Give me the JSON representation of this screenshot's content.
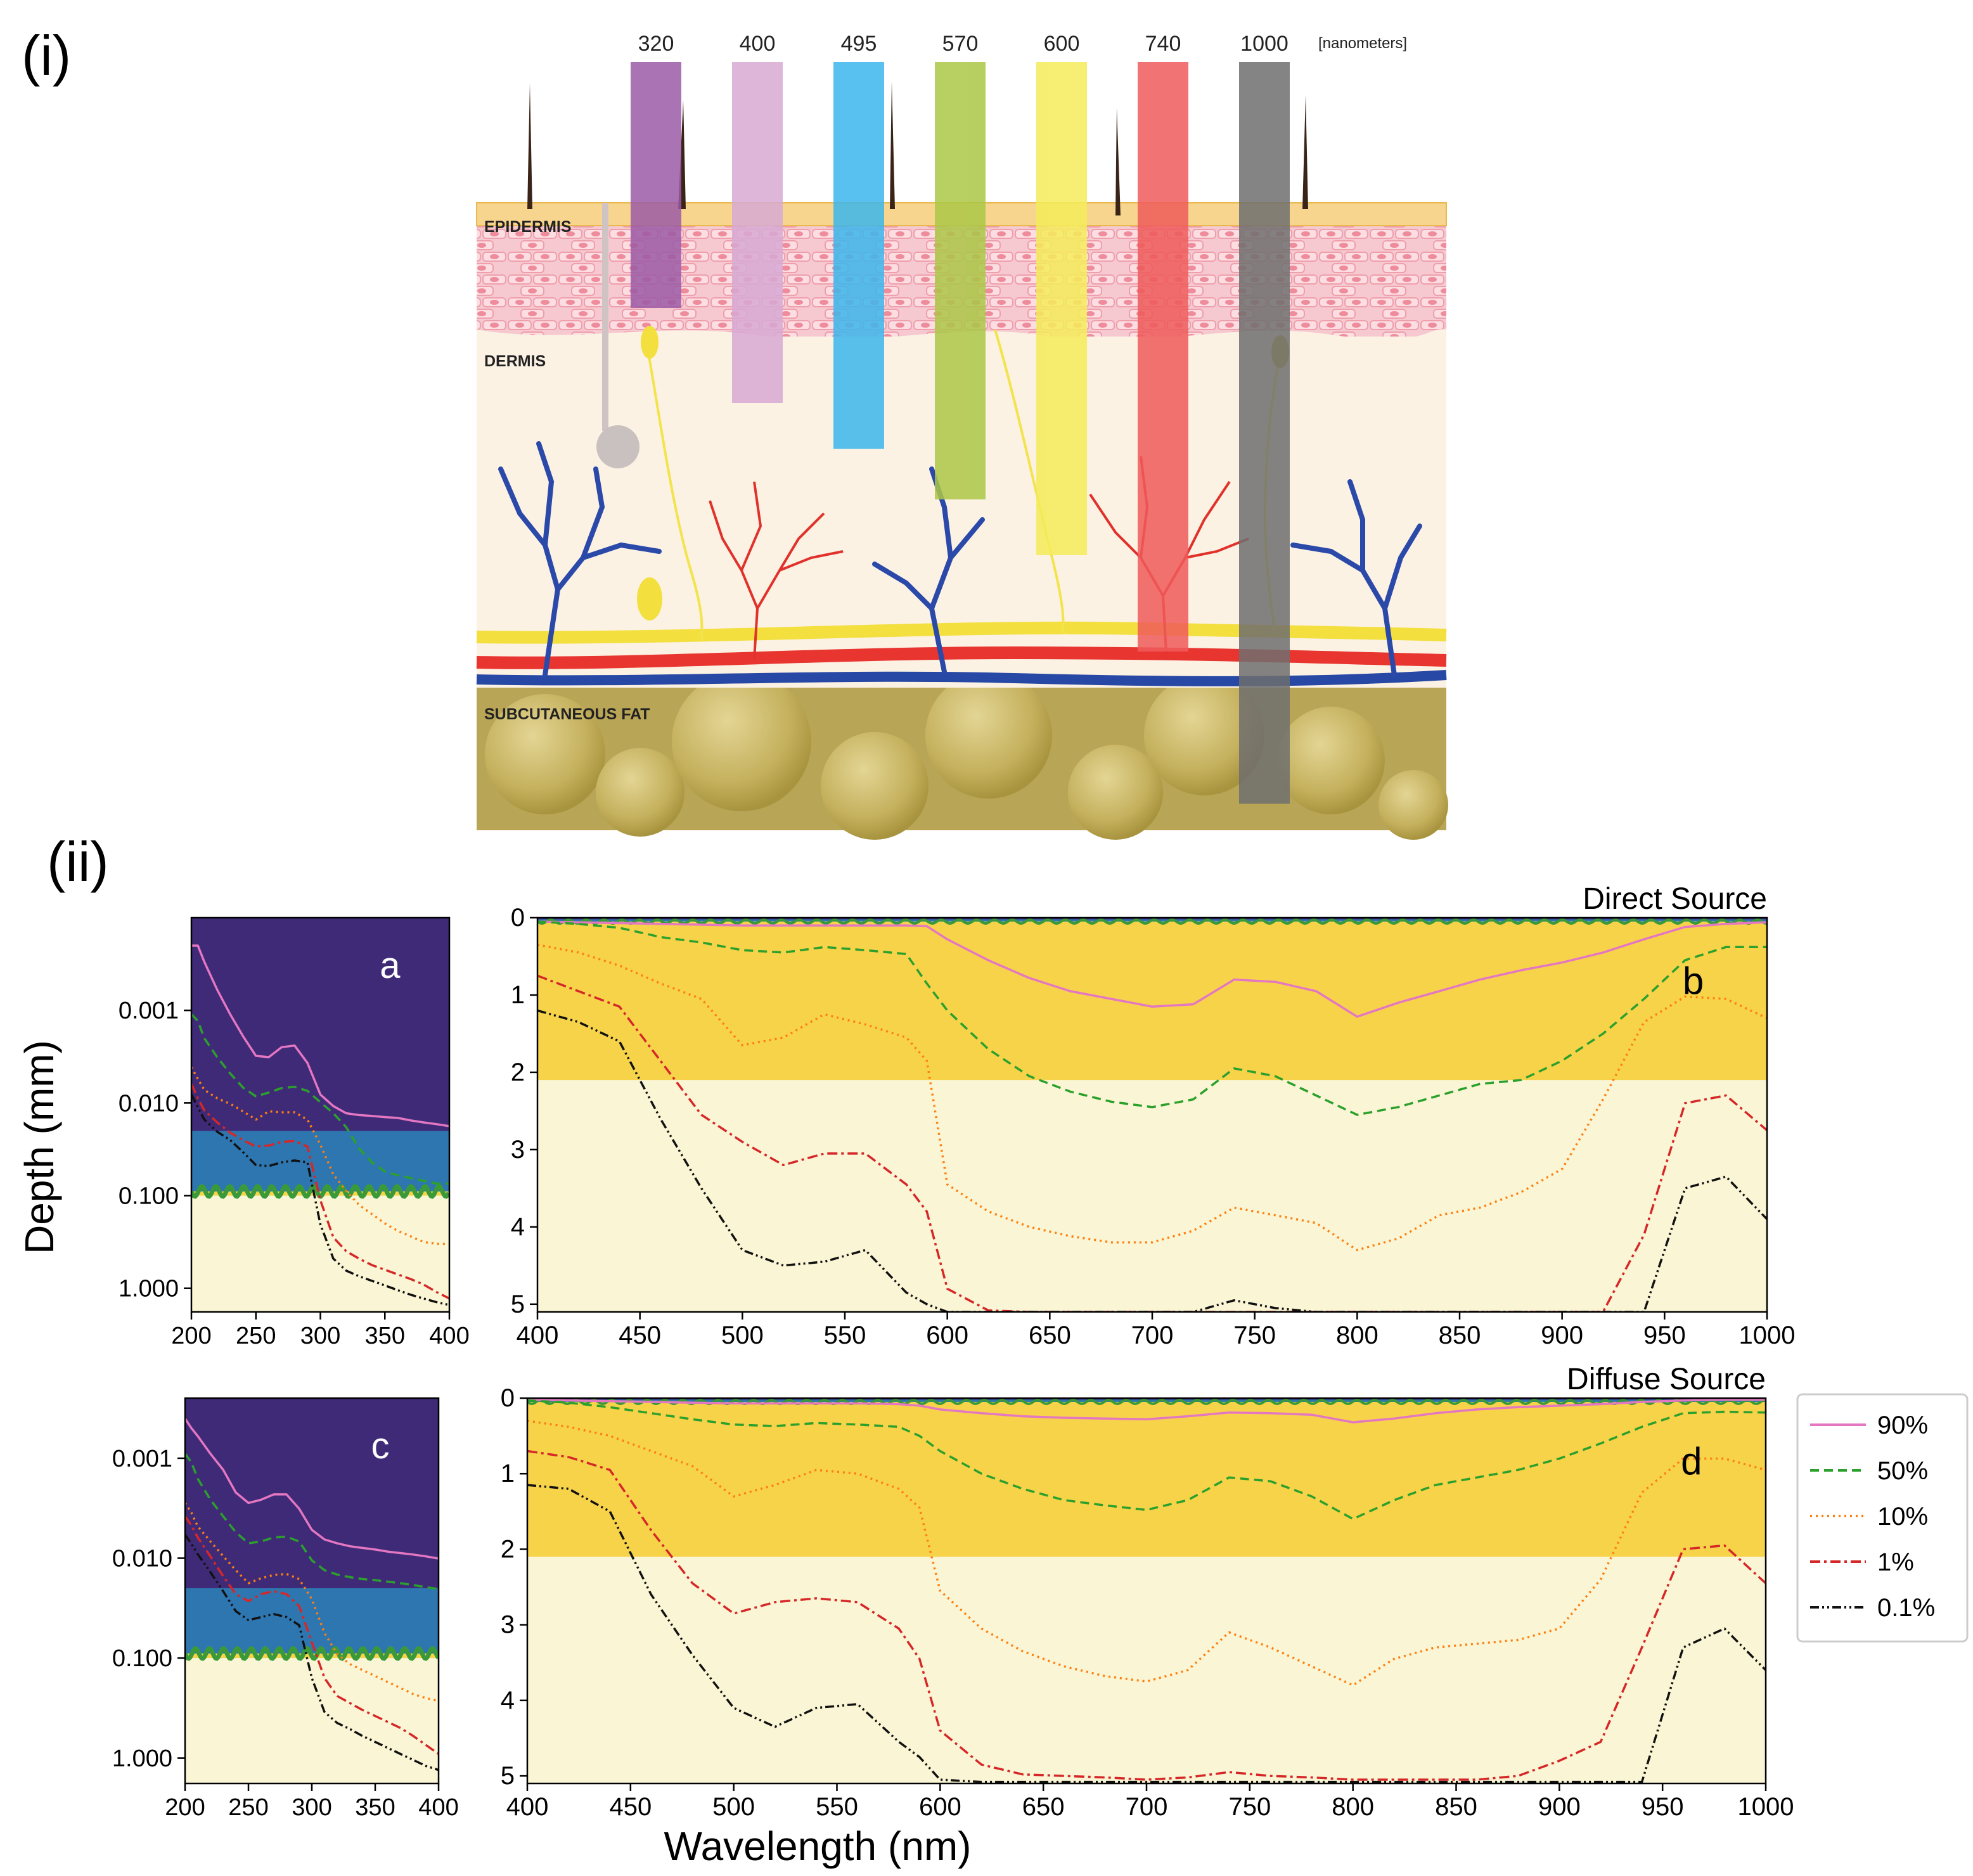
{
  "panel_labels": {
    "i": "(i)",
    "ii": "(ii)"
  },
  "skin": {
    "unit_label": "[nanometers]",
    "layers": [
      {
        "key": "epidermis",
        "label": "EPIDERMIS"
      },
      {
        "key": "dermis",
        "label": "DERMIS"
      },
      {
        "key": "fat",
        "label": "SUBCUTANEOUS FAT"
      }
    ],
    "beams": [
      {
        "label": "320",
        "color": "#9b5aa6",
        "penetration_layer": "epidermis"
      },
      {
        "label": "400",
        "color": "#d7a9d4",
        "penetration_layer": "dermis"
      },
      {
        "label": "495",
        "color": "#3bb6ec",
        "penetration_layer": "dermis"
      },
      {
        "label": "570",
        "color": "#abc746",
        "penetration_layer": "dermis"
      },
      {
        "label": "600",
        "color": "#f4ec5a",
        "penetration_layer": "dermis"
      },
      {
        "label": "740",
        "color": "#ee5a5a",
        "penetration_layer": "dermis"
      },
      {
        "label": "1000",
        "color": "#6f6f6f",
        "penetration_layer": "subcutaneous fat"
      }
    ]
  },
  "y_common_label": "Depth (mm)",
  "x_common_label": "Wavelength (nm)",
  "legend": [
    {
      "label": "90%",
      "color": "#e377c2",
      "dash": "solid"
    },
    {
      "label": "50%",
      "color": "#2ca02c",
      "dash": "dashed"
    },
    {
      "label": "10%",
      "color": "#ff7f0e",
      "dash": "dotted"
    },
    {
      "label": "1%",
      "color": "#d62728",
      "dash": "dashdot"
    },
    {
      "label": "0.1%",
      "color": "#111111",
      "dash": "dashdotdot"
    }
  ],
  "colors": {
    "stratum": "#3f2a78",
    "epidermis_top": "#2e76b0",
    "wave": "#3a9a3a",
    "epidermis": "#f7d34a",
    "dermis": "#faf5d4"
  },
  "chart_data": [
    {
      "panel": "a",
      "type": "line",
      "yscale": "log",
      "xlim": [
        200,
        400
      ],
      "ylim": [
        0.0001,
        1.8
      ],
      "xticks": [
        "200",
        "250",
        "300",
        "350",
        "400"
      ],
      "yticks": [
        {
          "v": 0.001,
          "t": "0.001"
        },
        {
          "v": 0.01,
          "t": "0.010"
        },
        {
          "v": 0.1,
          "t": "0.100"
        },
        {
          "v": 1,
          "t": "1.000"
        }
      ],
      "bands": [
        0.02,
        0.09,
        0.1
      ],
      "x": [
        200,
        205,
        210,
        220,
        230,
        240,
        250,
        260,
        270,
        280,
        290,
        300,
        310,
        320,
        330,
        340,
        350,
        360,
        370,
        380,
        390,
        400
      ],
      "series": [
        {
          "name": "90%",
          "values": [
            0.0002,
            0.0002,
            0.0003,
            0.0006,
            0.0011,
            0.0019,
            0.0031,
            0.0032,
            0.0025,
            0.0024,
            0.0037,
            0.0081,
            0.0108,
            0.0129,
            0.0135,
            0.0138,
            0.0142,
            0.0145,
            0.0154,
            0.0162,
            0.0169,
            0.0178
          ]
        },
        {
          "name": "50%",
          "values": [
            0.0011,
            0.0013,
            0.002,
            0.0032,
            0.0048,
            0.0068,
            0.0085,
            0.0077,
            0.0069,
            0.0067,
            0.0074,
            0.0098,
            0.0129,
            0.0182,
            0.0309,
            0.0437,
            0.055,
            0.0603,
            0.0646,
            0.0692,
            0.0741,
            0.0741
          ]
        },
        {
          "name": "10%",
          "values": [
            0.0041,
            0.0055,
            0.0072,
            0.0089,
            0.0102,
            0.0123,
            0.0151,
            0.0123,
            0.0126,
            0.0126,
            0.0151,
            0.0282,
            0.0589,
            0.0891,
            0.1259,
            0.1585,
            0.1995,
            0.2399,
            0.2754,
            0.3162,
            0.3311,
            0.3311
          ]
        },
        {
          "name": "1%",
          "values": [
            0.0062,
            0.0089,
            0.012,
            0.0162,
            0.0209,
            0.0251,
            0.0295,
            0.0288,
            0.0263,
            0.0257,
            0.0295,
            0.1122,
            0.2818,
            0.3981,
            0.4786,
            0.5623,
            0.631,
            0.7079,
            0.7943,
            0.912,
            1.0965,
            1.2882
          ]
        },
        {
          "name": "0.1%",
          "values": [
            0.0081,
            0.0112,
            0.0151,
            0.0204,
            0.0251,
            0.0339,
            0.0468,
            0.0479,
            0.0437,
            0.0417,
            0.0437,
            0.2042,
            0.4786,
            0.6457,
            0.7413,
            0.8318,
            0.9333,
            1.0471,
            1.1749,
            1.2882,
            1.4125,
            1.5136
          ]
        }
      ]
    },
    {
      "panel": "b",
      "type": "line",
      "title": "Direct Source",
      "xlim": [
        400,
        1000
      ],
      "ylim": [
        0,
        5.1
      ],
      "xticks": [
        "400",
        "450",
        "500",
        "550",
        "600",
        "650",
        "700",
        "750",
        "800",
        "850",
        "900",
        "950",
        "1000"
      ],
      "yticks": [
        "0",
        "1",
        "2",
        "3",
        "4",
        "5"
      ],
      "bands": [
        0.02,
        0.05,
        2.1
      ],
      "x": [
        400,
        420,
        440,
        460,
        480,
        500,
        520,
        540,
        560,
        580,
        590,
        600,
        620,
        640,
        660,
        680,
        700,
        720,
        740,
        760,
        780,
        800,
        820,
        840,
        860,
        880,
        900,
        920,
        940,
        960,
        980,
        1000
      ],
      "series": [
        {
          "name": "90%",
          "values": [
            0.05,
            0.06,
            0.07,
            0.08,
            0.09,
            0.1,
            0.1,
            0.1,
            0.1,
            0.1,
            0.11,
            0.28,
            0.55,
            0.78,
            0.95,
            1.05,
            1.15,
            1.12,
            0.8,
            0.83,
            0.95,
            1.28,
            1.1,
            0.95,
            0.8,
            0.68,
            0.58,
            0.45,
            0.28,
            0.12,
            0.08,
            0.06
          ]
        },
        {
          "name": "50%",
          "values": [
            0.05,
            0.08,
            0.13,
            0.25,
            0.32,
            0.42,
            0.45,
            0.38,
            0.42,
            0.47,
            0.85,
            1.2,
            1.7,
            2.05,
            2.25,
            2.38,
            2.45,
            2.35,
            1.95,
            2.05,
            2.3,
            2.55,
            2.45,
            2.3,
            2.15,
            2.1,
            1.85,
            1.5,
            1.05,
            0.55,
            0.38,
            0.38
          ]
        },
        {
          "name": "10%",
          "values": [
            0.35,
            0.45,
            0.62,
            0.85,
            1.05,
            1.65,
            1.55,
            1.25,
            1.38,
            1.55,
            1.85,
            3.45,
            3.8,
            4.0,
            4.12,
            4.2,
            4.2,
            4.05,
            3.75,
            3.85,
            3.95,
            4.3,
            4.15,
            3.85,
            3.75,
            3.55,
            3.25,
            2.35,
            1.35,
            1.02,
            1.05,
            1.3
          ]
        },
        {
          "name": "1%",
          "values": [
            0.75,
            0.95,
            1.15,
            1.85,
            2.55,
            2.9,
            3.2,
            3.05,
            3.05,
            3.45,
            3.8,
            4.8,
            5.08,
            5.1,
            5.1,
            5.1,
            5.1,
            5.1,
            5.1,
            5.1,
            5.1,
            5.1,
            5.1,
            5.1,
            5.1,
            5.1,
            5.1,
            5.1,
            4.1,
            2.4,
            2.3,
            2.75
          ]
        },
        {
          "name": "0.1%",
          "values": [
            1.2,
            1.35,
            1.6,
            2.6,
            3.5,
            4.3,
            4.5,
            4.45,
            4.3,
            4.85,
            5.0,
            5.1,
            5.1,
            5.1,
            5.1,
            5.1,
            5.1,
            5.1,
            4.95,
            5.05,
            5.1,
            5.1,
            5.1,
            5.1,
            5.1,
            5.1,
            5.1,
            5.1,
            5.1,
            3.5,
            3.35,
            3.9
          ]
        }
      ]
    },
    {
      "panel": "c",
      "type": "line",
      "yscale": "log",
      "xlim": [
        200,
        400
      ],
      "ylim": [
        0.00025,
        1.8
      ],
      "xticks": [
        "200",
        "250",
        "300",
        "350",
        "400"
      ],
      "yticks": [
        {
          "v": 0.001,
          "t": "0.001"
        },
        {
          "v": 0.01,
          "t": "0.010"
        },
        {
          "v": 0.1,
          "t": "0.100"
        },
        {
          "v": 1,
          "t": "1.000"
        }
      ],
      "bands": [
        0.02,
        0.09,
        0.1
      ],
      "x": [
        200,
        205,
        210,
        220,
        230,
        240,
        250,
        260,
        270,
        280,
        290,
        300,
        310,
        320,
        330,
        340,
        350,
        360,
        370,
        380,
        390,
        400
      ],
      "series": [
        {
          "name": "90%",
          "values": [
            0.0004,
            0.0005,
            0.0006,
            0.0009,
            0.0013,
            0.0022,
            0.0028,
            0.0026,
            0.0023,
            0.0023,
            0.0032,
            0.0052,
            0.0065,
            0.0071,
            0.0076,
            0.0079,
            0.0082,
            0.0086,
            0.0089,
            0.0092,
            0.0096,
            0.0101
          ]
        },
        {
          "name": "50%",
          "values": [
            0.0009,
            0.0011,
            0.0016,
            0.0026,
            0.0038,
            0.0055,
            0.0071,
            0.0068,
            0.0062,
            0.0061,
            0.0068,
            0.0105,
            0.0132,
            0.0146,
            0.0155,
            0.0162,
            0.0166,
            0.0172,
            0.0178,
            0.0186,
            0.0195,
            0.0204
          ]
        },
        {
          "name": "10%",
          "values": [
            0.0028,
            0.0035,
            0.0048,
            0.0068,
            0.0095,
            0.0132,
            0.0178,
            0.0159,
            0.0147,
            0.0144,
            0.0162,
            0.0257,
            0.0562,
            0.0912,
            0.1148,
            0.1318,
            0.1514,
            0.1738,
            0.1995,
            0.2291,
            0.2512,
            0.2692
          ]
        },
        {
          "name": "1%",
          "values": [
            0.0038,
            0.0047,
            0.0062,
            0.0096,
            0.0151,
            0.0229,
            0.0269,
            0.0229,
            0.0214,
            0.0229,
            0.0302,
            0.0692,
            0.1585,
            0.2399,
            0.2818,
            0.3311,
            0.3802,
            0.4365,
            0.5012,
            0.6026,
            0.7413,
            0.912
          ]
        },
        {
          "name": "0.1%",
          "values": [
            0.0058,
            0.0072,
            0.0091,
            0.0138,
            0.0214,
            0.0339,
            0.0417,
            0.0389,
            0.0363,
            0.0389,
            0.0468,
            0.1585,
            0.3467,
            0.4467,
            0.5129,
            0.6026,
            0.6918,
            0.7943,
            0.912,
            1.0471,
            1.2023,
            1.3183
          ]
        }
      ]
    },
    {
      "panel": "d",
      "type": "line",
      "title": "Diffuse Source",
      "xlim": [
        400,
        1000
      ],
      "ylim": [
        0,
        5.1
      ],
      "xticks": [
        "400",
        "450",
        "500",
        "550",
        "600",
        "650",
        "700",
        "750",
        "800",
        "850",
        "900",
        "950",
        "1000"
      ],
      "yticks": [
        "0",
        "1",
        "2",
        "3",
        "4",
        "5"
      ],
      "bands": [
        0.02,
        0.05,
        2.1
      ],
      "x": [
        400,
        420,
        440,
        460,
        480,
        500,
        520,
        540,
        560,
        580,
        590,
        600,
        620,
        640,
        660,
        680,
        700,
        720,
        740,
        760,
        780,
        800,
        820,
        840,
        860,
        880,
        900,
        920,
        940,
        960,
        980,
        1000
      ],
      "series": [
        {
          "name": "90%",
          "values": [
            0.02,
            0.03,
            0.04,
            0.05,
            0.06,
            0.07,
            0.07,
            0.07,
            0.07,
            0.08,
            0.1,
            0.15,
            0.2,
            0.24,
            0.26,
            0.27,
            0.28,
            0.24,
            0.19,
            0.2,
            0.22,
            0.32,
            0.27,
            0.2,
            0.15,
            0.12,
            0.1,
            0.08,
            0.05,
            0.03,
            0.02,
            0.02
          ]
        },
        {
          "name": "50%",
          "values": [
            0.03,
            0.06,
            0.12,
            0.2,
            0.28,
            0.35,
            0.37,
            0.33,
            0.35,
            0.38,
            0.5,
            0.7,
            1.0,
            1.2,
            1.35,
            1.42,
            1.48,
            1.35,
            1.05,
            1.1,
            1.3,
            1.6,
            1.35,
            1.15,
            1.05,
            0.95,
            0.8,
            0.6,
            0.38,
            0.2,
            0.18,
            0.19
          ]
        },
        {
          "name": "10%",
          "values": [
            0.3,
            0.38,
            0.5,
            0.7,
            0.9,
            1.3,
            1.15,
            0.95,
            1.0,
            1.2,
            1.45,
            2.55,
            3.05,
            3.35,
            3.55,
            3.68,
            3.75,
            3.6,
            3.1,
            3.3,
            3.55,
            3.8,
            3.45,
            3.3,
            3.25,
            3.2,
            3.05,
            2.4,
            1.25,
            0.8,
            0.8,
            0.95
          ]
        },
        {
          "name": "1%",
          "values": [
            0.7,
            0.78,
            0.95,
            1.75,
            2.45,
            2.85,
            2.7,
            2.65,
            2.7,
            3.05,
            3.45,
            4.4,
            4.85,
            4.98,
            5.0,
            5.02,
            5.05,
            5.02,
            4.95,
            5.0,
            5.02,
            5.05,
            5.05,
            5.05,
            5.05,
            5.0,
            4.8,
            4.55,
            3.3,
            2.0,
            1.95,
            2.45
          ]
        },
        {
          "name": "0.1%",
          "values": [
            1.15,
            1.2,
            1.5,
            2.6,
            3.4,
            4.1,
            4.35,
            4.1,
            4.05,
            4.55,
            4.75,
            5.05,
            5.08,
            5.08,
            5.08,
            5.08,
            5.08,
            5.08,
            5.08,
            5.08,
            5.08,
            5.08,
            5.08,
            5.08,
            5.08,
            5.08,
            5.08,
            5.08,
            5.08,
            3.3,
            3.05,
            3.6
          ]
        }
      ]
    }
  ]
}
